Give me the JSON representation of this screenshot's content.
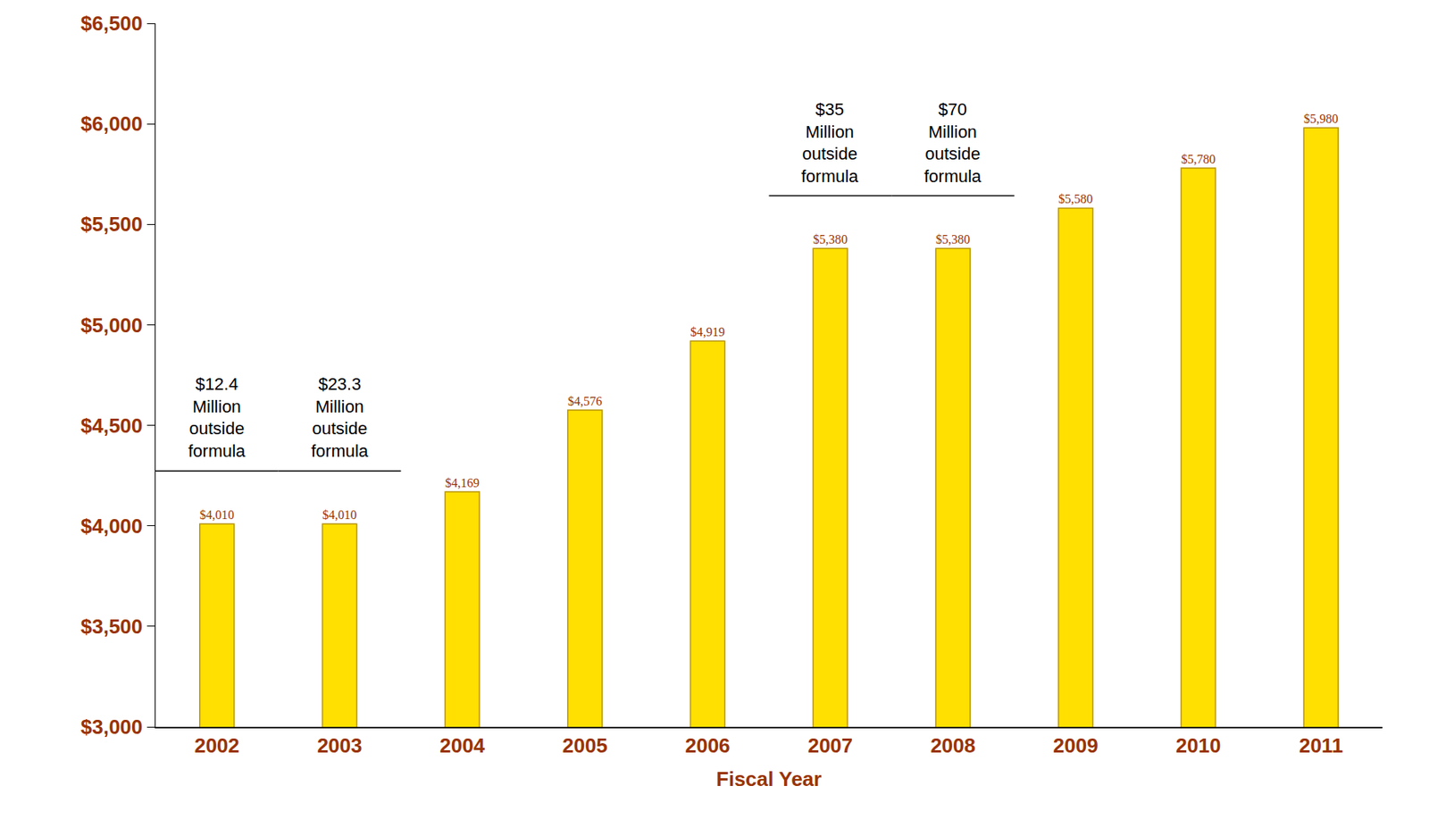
{
  "chart_data": {
    "type": "bar",
    "x_label": "Fiscal Year",
    "categories": [
      "2002",
      "2003",
      "2004",
      "2005",
      "2006",
      "2007",
      "2008",
      "2009",
      "2010",
      "2011"
    ],
    "values": [
      4010,
      4010,
      4169,
      4576,
      4919,
      5380,
      5380,
      5580,
      5780,
      5980
    ],
    "value_labels": [
      "$4,010",
      "$4,010",
      "$4,169",
      "$4,576",
      "$4,919",
      "$5,380",
      "$5,380",
      "$5,580",
      "$5,780",
      "$5,980"
    ],
    "color": "#FFE000",
    "ylim": [
      3000,
      6500
    ],
    "yticks": [
      {
        "value": 3000,
        "label": "$3,000"
      },
      {
        "value": 3500,
        "label": "$3,500"
      },
      {
        "value": 4000,
        "label": "$4,000"
      },
      {
        "value": 4500,
        "label": "$4,500"
      },
      {
        "value": 5000,
        "label": "$5,000"
      },
      {
        "value": 5500,
        "label": "$5,500"
      },
      {
        "value": 6000,
        "label": "$6,000"
      },
      {
        "value": 6500,
        "label": "$6,500"
      }
    ],
    "grid": false,
    "data_labels": true,
    "annotations": [
      {
        "text": "$12.4 Million outside formula",
        "category": "2002"
      },
      {
        "text": "$23.3 Million outside formula",
        "category": "2003"
      },
      {
        "text": "$35 Million outside formula",
        "category": "2007"
      },
      {
        "text": "$70 Million outside formula",
        "category": "2008"
      }
    ]
  }
}
